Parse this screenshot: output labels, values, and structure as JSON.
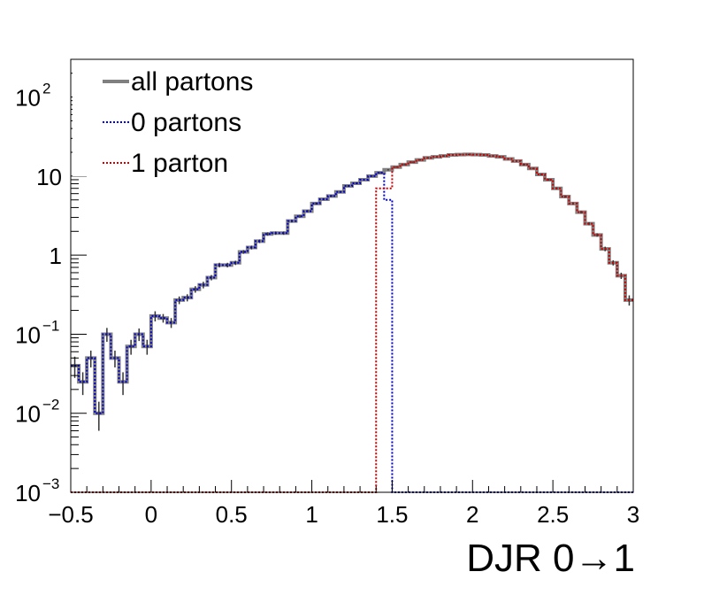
{
  "chart_data": {
    "type": "line",
    "style": "step-histogram",
    "xlabel": "DJR 0→1",
    "ylabel": "",
    "xlim": [
      -0.5,
      3.0
    ],
    "ylim": [
      0.001,
      300
    ],
    "y_scale": "log",
    "grid": false,
    "legend_position": "top-left",
    "x_ticks": [
      {
        "value": -0.5,
        "label": "−0.5"
      },
      {
        "value": 0,
        "label": "0"
      },
      {
        "value": 0.5,
        "label": "0.5"
      },
      {
        "value": 1,
        "label": "1"
      },
      {
        "value": 1.5,
        "label": "1.5"
      },
      {
        "value": 2,
        "label": "2"
      },
      {
        "value": 2.5,
        "label": "2.5"
      },
      {
        "value": 3,
        "label": "3"
      }
    ],
    "y_ticks": [
      {
        "value": 0.001,
        "base": "10",
        "exp": "−3"
      },
      {
        "value": 0.01,
        "base": "10",
        "exp": "−2"
      },
      {
        "value": 0.1,
        "base": "10",
        "exp": "−1"
      },
      {
        "value": 1,
        "base": "1",
        "exp": ""
      },
      {
        "value": 10,
        "base": "10",
        "exp": ""
      },
      {
        "value": 100,
        "base": "10",
        "exp": "2"
      }
    ],
    "bin_edges_range": [
      -0.5,
      3.0
    ],
    "bin_width": 0.05,
    "series": [
      {
        "name": "all partons",
        "color": "#808080",
        "line": "solid",
        "values": [
          0.04,
          0.025,
          0.05,
          0.01,
          0.1,
          0.05,
          0.025,
          0.07,
          0.1,
          0.07,
          0.17,
          0.16,
          0.14,
          0.27,
          0.29,
          0.37,
          0.42,
          0.52,
          0.75,
          0.75,
          0.8,
          1.1,
          1.25,
          1.5,
          1.85,
          1.9,
          1.9,
          2.7,
          3.1,
          3.6,
          4.5,
          5.1,
          5.6,
          6.3,
          7.5,
          8.1,
          9.0,
          10.0,
          11.0,
          12.0,
          13.0,
          14.0,
          15.0,
          16.0,
          17.0,
          17.5,
          18.0,
          18.5,
          18.7,
          18.8,
          18.7,
          18.5,
          18.0,
          17.5,
          16.5,
          15.5,
          14.0,
          12.5,
          10.5,
          9.0,
          7.0,
          5.5,
          4.5,
          3.5,
          2.5,
          1.8,
          1.2,
          0.8,
          0.55,
          0.27
        ],
        "errors": [
          0.012,
          0.008,
          0.012,
          0.004,
          0.02,
          0.012,
          0.008,
          0.015,
          0.018,
          0.015,
          0.025,
          0.02,
          0.02,
          0.03,
          0.03,
          0.035,
          0.04,
          0.04,
          0.05,
          0.05,
          0.05,
          0.06,
          0.07,
          0.08,
          0.09,
          0.09,
          0.09,
          0.11,
          0.12,
          0.13,
          0.14,
          0.15,
          0.16,
          0.17,
          0.19,
          0.2,
          0.21,
          0.22,
          0.23,
          0.24,
          0.25,
          0.27,
          0.28,
          0.29,
          0.3,
          0.3,
          0.31,
          0.31,
          0.31,
          0.32,
          0.31,
          0.31,
          0.3,
          0.3,
          0.29,
          0.28,
          0.27,
          0.25,
          0.23,
          0.21,
          0.19,
          0.17,
          0.15,
          0.13,
          0.11,
          0.09,
          0.08,
          0.06,
          0.05,
          0.04
        ]
      },
      {
        "name": "0 partons",
        "color": "#0000cc",
        "line": "dotted",
        "values": [
          0.04,
          0.025,
          0.05,
          0.01,
          0.1,
          0.05,
          0.025,
          0.07,
          0.1,
          0.07,
          0.17,
          0.16,
          0.14,
          0.27,
          0.29,
          0.37,
          0.42,
          0.52,
          0.75,
          0.75,
          0.8,
          1.1,
          1.25,
          1.5,
          1.85,
          1.9,
          1.9,
          2.7,
          3.1,
          3.6,
          4.5,
          5.1,
          5.6,
          6.3,
          7.5,
          8.1,
          9.0,
          10.0,
          11.0,
          5.0,
          0.001,
          0.001,
          0.001,
          0.001,
          0.001,
          0.001,
          0.001,
          0.001,
          0.001,
          0.001,
          0.001,
          0.001,
          0.001,
          0.001,
          0.001,
          0.001,
          0.001,
          0.001,
          0.001,
          0.001,
          0.001,
          0.001,
          0.001,
          0.001,
          0.001,
          0.001,
          0.001,
          0.001,
          0.001,
          0.001
        ]
      },
      {
        "name": "1 parton",
        "color": "#cc0000",
        "line": "dotted",
        "values": [
          0.001,
          0.001,
          0.001,
          0.001,
          0.001,
          0.001,
          0.001,
          0.001,
          0.001,
          0.001,
          0.001,
          0.001,
          0.001,
          0.001,
          0.001,
          0.001,
          0.001,
          0.001,
          0.001,
          0.001,
          0.001,
          0.001,
          0.001,
          0.001,
          0.001,
          0.001,
          0.001,
          0.001,
          0.001,
          0.001,
          0.001,
          0.001,
          0.001,
          0.001,
          0.001,
          0.001,
          0.001,
          0.001,
          7.0,
          7.0,
          13.0,
          14.0,
          15.0,
          16.0,
          17.0,
          17.5,
          18.0,
          18.5,
          18.7,
          18.8,
          18.7,
          18.5,
          18.0,
          17.5,
          16.5,
          15.5,
          14.0,
          12.5,
          10.5,
          9.0,
          7.0,
          5.5,
          4.5,
          3.5,
          2.5,
          1.8,
          1.2,
          0.8,
          0.55,
          0.27
        ]
      }
    ]
  }
}
